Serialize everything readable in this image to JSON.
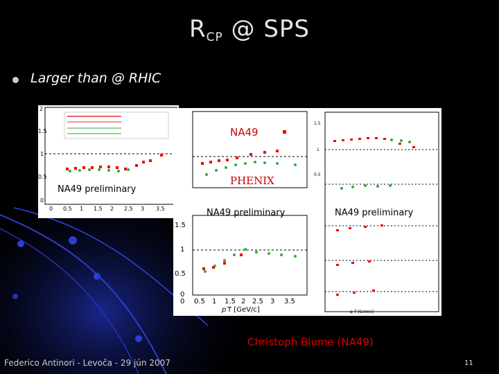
{
  "slide": {
    "title_main": "R",
    "title_sub": "CP",
    "title_rest": " @ SPS",
    "bullet": "Larger than @ RHIC",
    "footer": "Federico Antinori - Levoča - 29 jún 2007",
    "page_number": "11",
    "credit": "Christoph Blume (NA49)"
  },
  "labels": {
    "na49_red": "NA49",
    "phenix": "PHENIX",
    "prelim_left": "NA49 preliminary",
    "prelim_mid": "NA49 preliminary",
    "prelim_right": "NA49 preliminary"
  },
  "colors": {
    "accent_blue": "#1a2fb0",
    "na49_red": "#e00000",
    "phenix_green": "#2aa02a"
  }
}
